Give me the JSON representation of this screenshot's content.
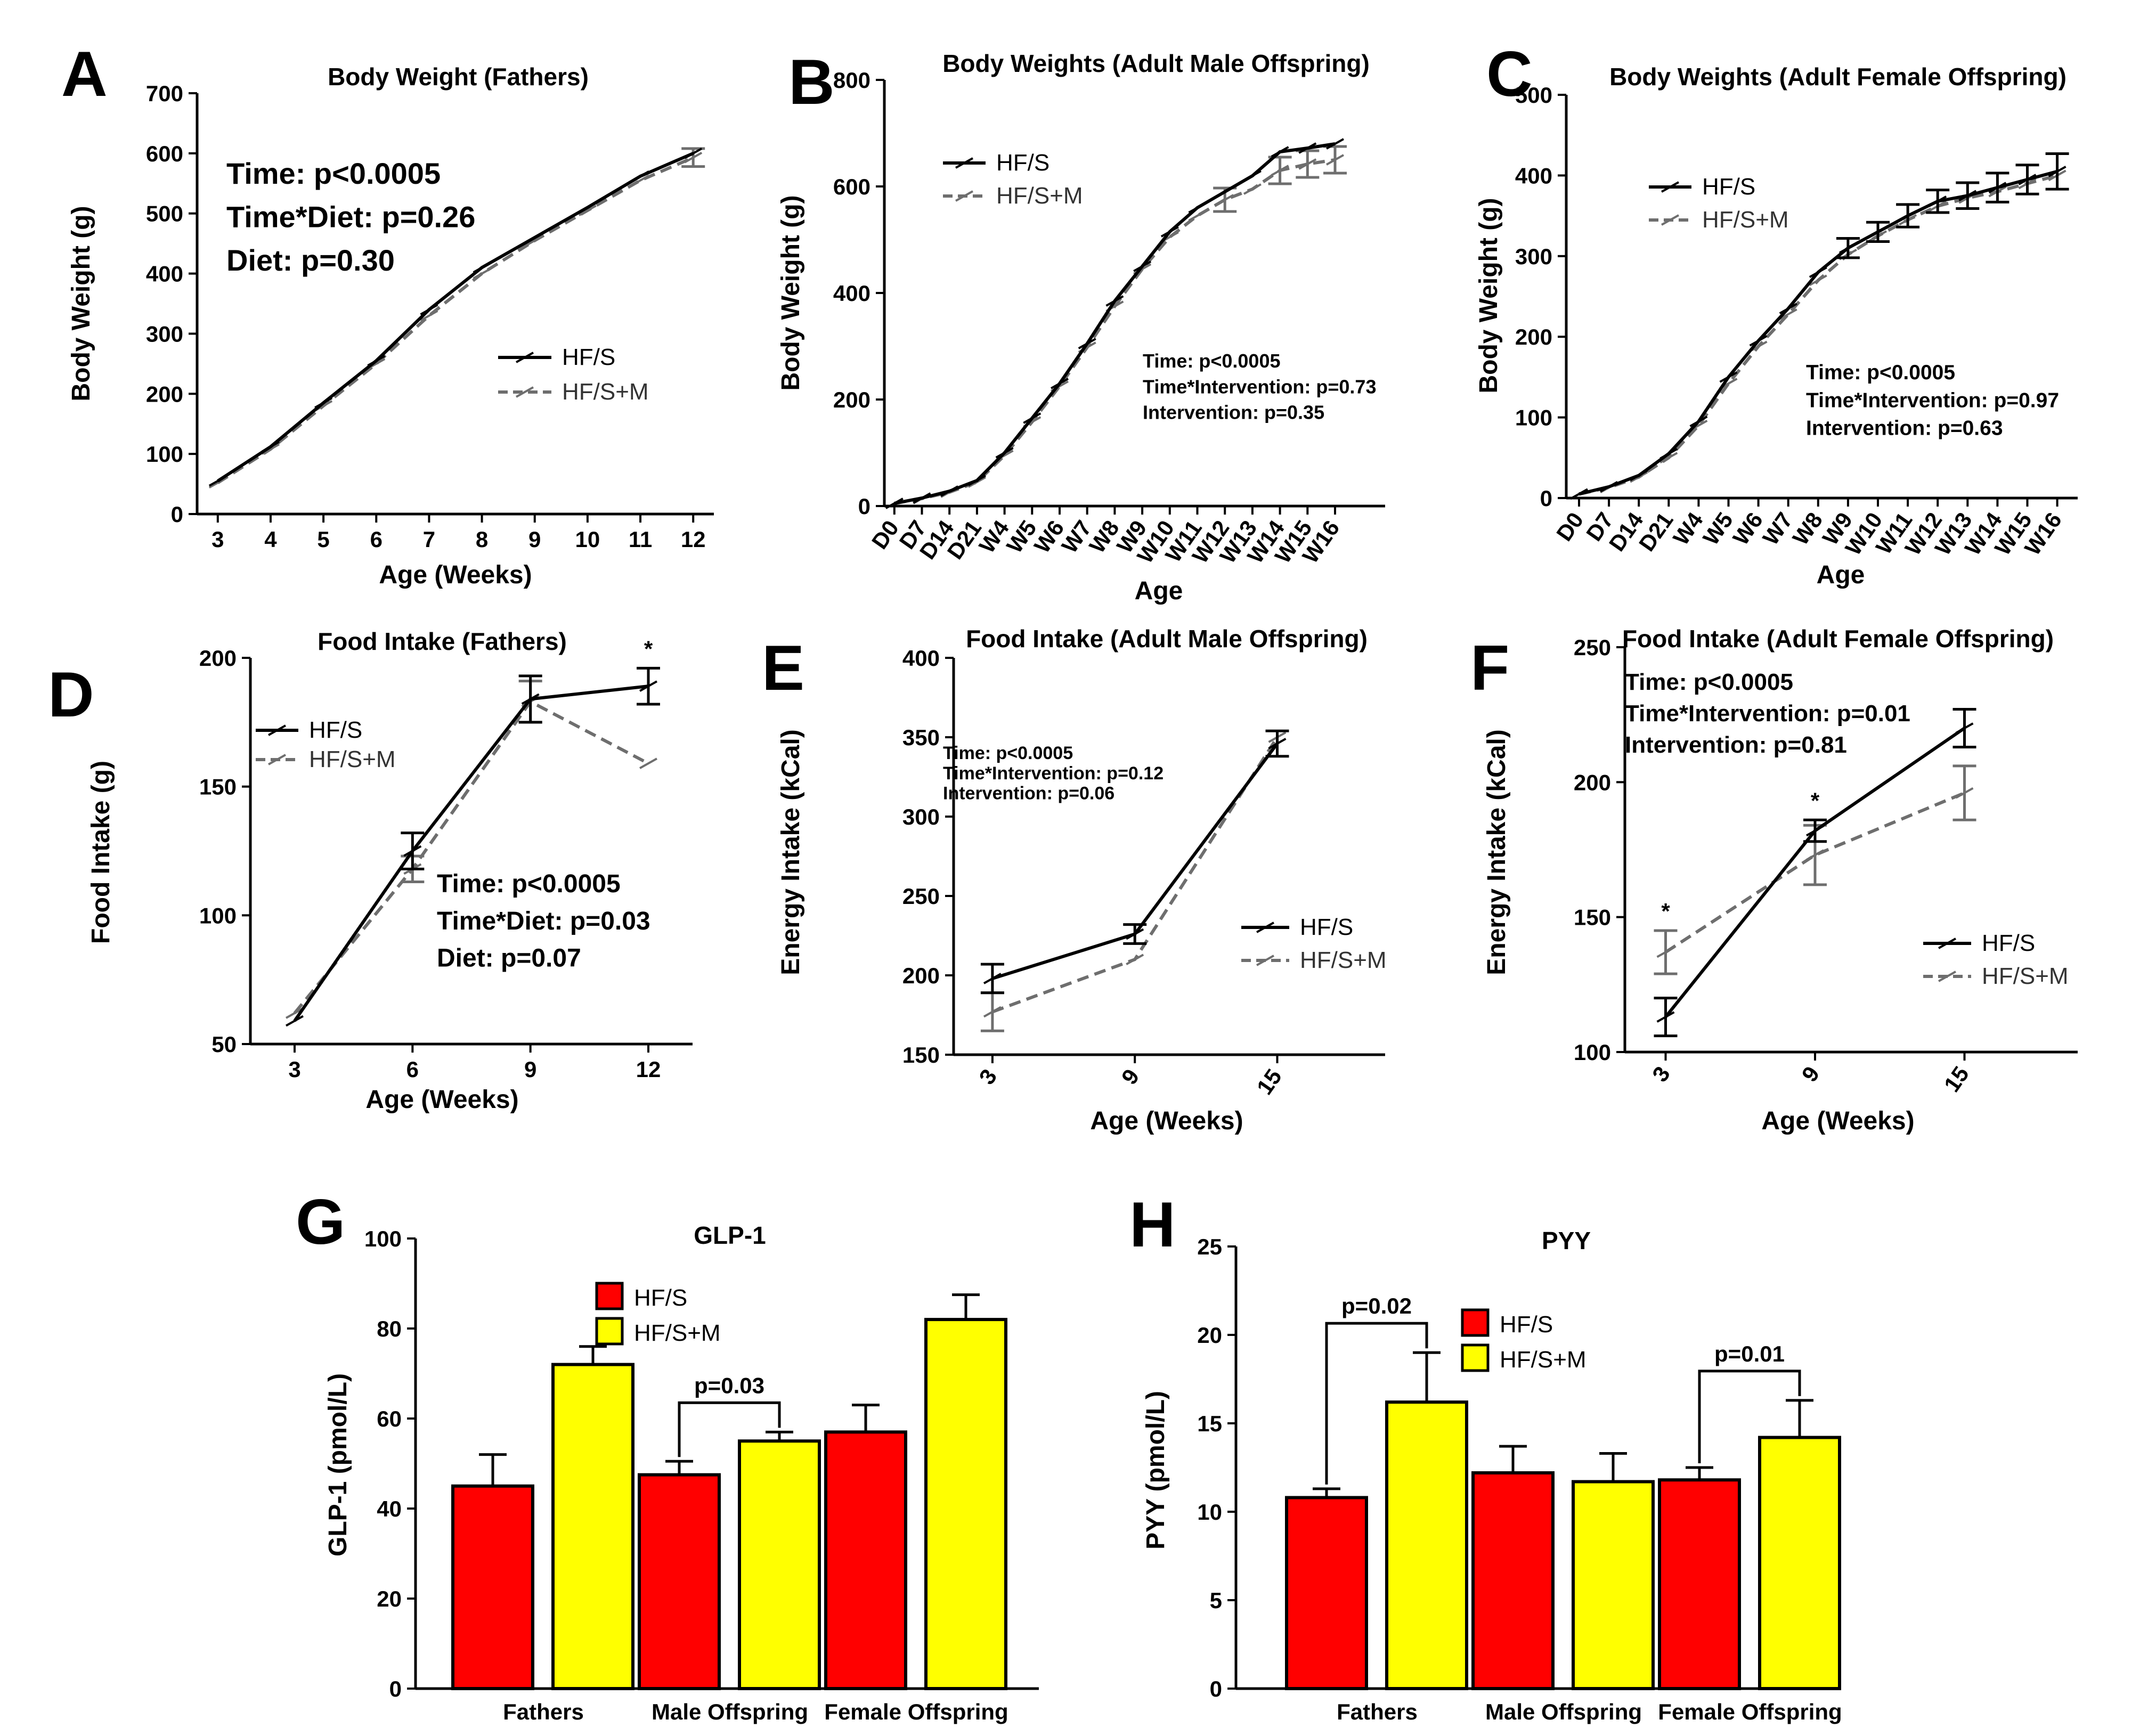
{
  "colors": {
    "hfs": "#000000",
    "hfsm": "#6e6e6e",
    "bar_hfs": "#ff0000",
    "bar_hfsm": "#ffff00"
  },
  "chart_data": [
    {
      "panel": "A",
      "type": "line",
      "title": "Body Weight (Fathers)",
      "xlabel": "Age (Weeks)",
      "ylabel": "Body Weight (g)",
      "x": [
        "3",
        "4",
        "5",
        "6",
        "7",
        "8",
        "9",
        "10",
        "11",
        "12"
      ],
      "ylim": [
        0,
        700
      ],
      "yticks": [
        "0",
        "100",
        "200",
        "300",
        "400",
        "500",
        "600",
        "700"
      ],
      "series": [
        {
          "name": "HF/S",
          "values": [
            55,
            112,
            185,
            255,
            340,
            410,
            460,
            510,
            562,
            600
          ],
          "err": [
            0,
            0,
            0,
            0,
            0,
            0,
            0,
            0,
            0,
            0
          ]
        },
        {
          "name": "HF/S+M",
          "values": [
            52,
            108,
            180,
            250,
            330,
            400,
            455,
            505,
            555,
            593
          ],
          "err": [
            0,
            0,
            0,
            0,
            0,
            0,
            0,
            0,
            0,
            15
          ]
        }
      ],
      "stats": [
        "Time: p<0.0005",
        "Time*Diet: p=0.26",
        "Diet: p=0.30"
      ],
      "legend": "center-right"
    },
    {
      "panel": "B",
      "type": "line",
      "title": "Body Weights (Adult Male Offspring)",
      "xlabel": "Age",
      "ylabel": "Body Weight (g)",
      "x": [
        "D0",
        "D7",
        "D14",
        "D21",
        "W4",
        "W5",
        "W6",
        "W7",
        "W8",
        "W9",
        "W10",
        "W11",
        "W12",
        "W13",
        "W14",
        "W15",
        "W16"
      ],
      "ylim": [
        0,
        800
      ],
      "yticks": [
        "0",
        "200",
        "400",
        "600",
        "800"
      ],
      "series": [
        {
          "name": "HF/S",
          "values": [
            5,
            15,
            28,
            48,
            100,
            165,
            230,
            305,
            385,
            450,
            515,
            560,
            590,
            620,
            665,
            672,
            680
          ],
          "err": [
            0,
            0,
            0,
            0,
            0,
            0,
            0,
            0,
            0,
            0,
            0,
            0,
            0,
            0,
            0,
            0,
            0
          ]
        },
        {
          "name": "HF/S+M",
          "values": [
            5,
            14,
            26,
            45,
            95,
            158,
            225,
            298,
            375,
            445,
            505,
            545,
            575,
            595,
            630,
            642,
            650
          ],
          "err": [
            0,
            0,
            0,
            0,
            0,
            0,
            0,
            0,
            0,
            0,
            0,
            0,
            22,
            0,
            25,
            25,
            25
          ]
        }
      ],
      "stats": [
        "Time: p<0.0005",
        "Time*Intervention: p=0.73",
        "Intervention: p=0.35"
      ],
      "legend": "top-left"
    },
    {
      "panel": "C",
      "type": "line",
      "title": "Body Weights (Adult Female Offspring)",
      "xlabel": "Age",
      "ylabel": "Body Weight (g)",
      "x": [
        "D0",
        "D7",
        "D14",
        "D21",
        "W4",
        "W5",
        "W6",
        "W7",
        "W8",
        "W9",
        "W10",
        "W11",
        "W12",
        "W13",
        "W14",
        "W15",
        "W16"
      ],
      "ylim": [
        0,
        500
      ],
      "yticks": [
        "0",
        "100",
        "200",
        "300",
        "400",
        "500"
      ],
      "series": [
        {
          "name": "HF/S",
          "values": [
            5,
            14,
            28,
            55,
            95,
            150,
            195,
            235,
            280,
            310,
            330,
            350,
            368,
            375,
            385,
            395,
            405
          ],
          "err": [
            0,
            0,
            0,
            0,
            0,
            0,
            0,
            0,
            0,
            12,
            12,
            14,
            14,
            16,
            18,
            18,
            22
          ]
        },
        {
          "name": "HF/S+M",
          "values": [
            5,
            13,
            26,
            50,
            90,
            142,
            188,
            228,
            270,
            302,
            325,
            345,
            362,
            372,
            380,
            390,
            400
          ],
          "err": [
            0,
            0,
            0,
            0,
            0,
            0,
            0,
            0,
            0,
            0,
            0,
            0,
            0,
            0,
            0,
            0,
            0
          ]
        }
      ],
      "stats": [
        "Time: p<0.0005",
        "Time*Intervention: p=0.97",
        "Intervention: p=0.63"
      ],
      "legend": "top-left"
    },
    {
      "panel": "D",
      "type": "line",
      "title": "Food Intake (Fathers)",
      "xlabel": "Age (Weeks)",
      "ylabel": "Food Intake (g)",
      "x": [
        "3",
        "6",
        "9",
        "12"
      ],
      "ylim": [
        50,
        200
      ],
      "yticks": [
        "50",
        "100",
        "150",
        "200"
      ],
      "series": [
        {
          "name": "HF/S",
          "values": [
            59,
            125,
            184,
            189
          ],
          "err": [
            0,
            7,
            9,
            7
          ]
        },
        {
          "name": "HF/S+M",
          "values": [
            62,
            118,
            183,
            159
          ],
          "err": [
            0,
            5,
            8,
            0
          ]
        }
      ],
      "annotations": [
        "*"
      ],
      "stats": [
        "Time: p<0.0005",
        "Time*Diet: p=0.03",
        "Diet: p=0.07"
      ],
      "legend": "top-left"
    },
    {
      "panel": "E",
      "type": "line",
      "title": "Food Intake (Adult Male Offspring)",
      "xlabel": "Age (Weeks)",
      "ylabel": "Energy Intake (kCal)",
      "x": [
        "3",
        "9",
        "15"
      ],
      "ylim": [
        150,
        400
      ],
      "yticks": [
        "150",
        "200",
        "250",
        "300",
        "350",
        "400"
      ],
      "series": [
        {
          "name": "HF/S",
          "values": [
            198,
            226,
            346
          ],
          "err": [
            9,
            6,
            8
          ]
        },
        {
          "name": "HF/S+M",
          "values": [
            177,
            210,
            350
          ],
          "err": [
            12,
            0,
            0
          ]
        }
      ],
      "stats": [
        "Time: p<0.0005",
        "Time*Intervention: p=0.12",
        "Intervention: p=0.06"
      ],
      "legend": "bottom-right"
    },
    {
      "panel": "F",
      "type": "line",
      "title": "Food Intake (Adult Female Offspring)",
      "xlabel": "Age (Weeks)",
      "ylabel": "Energy Intake (kCal)",
      "x": [
        "3",
        "9",
        "15"
      ],
      "ylim": [
        100,
        250
      ],
      "yticks": [
        "100",
        "150",
        "200",
        "250"
      ],
      "series": [
        {
          "name": "HF/S",
          "values": [
            113,
            182,
            220
          ],
          "err": [
            7,
            4,
            7
          ]
        },
        {
          "name": "HF/S+M",
          "values": [
            137,
            173,
            196
          ],
          "err": [
            8,
            11,
            10
          ]
        }
      ],
      "annotations": [
        "*",
        "*"
      ],
      "stats": [
        "Time: p<0.0005",
        "Time*Intervention: p=0.01",
        "Intervention: p=0.81"
      ],
      "legend": "bottom-right"
    },
    {
      "panel": "G",
      "type": "bar",
      "title": "GLP-1",
      "xlabel": "",
      "ylabel": "GLP-1 (pmol/L)",
      "categories": [
        "Fathers",
        "Male Offspring",
        "Female Offspring"
      ],
      "ylim": [
        0,
        100
      ],
      "yticks": [
        "0",
        "20",
        "40",
        "60",
        "80",
        "100"
      ],
      "series": [
        {
          "name": "HF/S",
          "values": [
            45,
            47.5,
            57
          ],
          "err": [
            7,
            3,
            6
          ]
        },
        {
          "name": "HF/S+M",
          "values": [
            72,
            55,
            82
          ],
          "err": [
            4,
            2,
            5.5
          ]
        }
      ],
      "annotations": [
        "p=0.03"
      ],
      "legend": "top-left"
    },
    {
      "panel": "H",
      "type": "bar",
      "title": "PYY",
      "xlabel": "",
      "ylabel": "PYY (pmol/L)",
      "categories": [
        "Fathers",
        "Male Offspring",
        "Female Offspring"
      ],
      "ylim": [
        0,
        25
      ],
      "yticks": [
        "0",
        "5",
        "10",
        "15",
        "20",
        "25"
      ],
      "series": [
        {
          "name": "HF/S",
          "values": [
            10.8,
            12.2,
            11.8
          ],
          "err": [
            0.5,
            1.5,
            0.7
          ]
        },
        {
          "name": "HF/S+M",
          "values": [
            16.2,
            11.7,
            14.2
          ],
          "err": [
            2.8,
            1.6,
            2.1
          ]
        }
      ],
      "annotations": [
        "p=0.02",
        "p=0.01"
      ],
      "legend": "top-center"
    }
  ]
}
